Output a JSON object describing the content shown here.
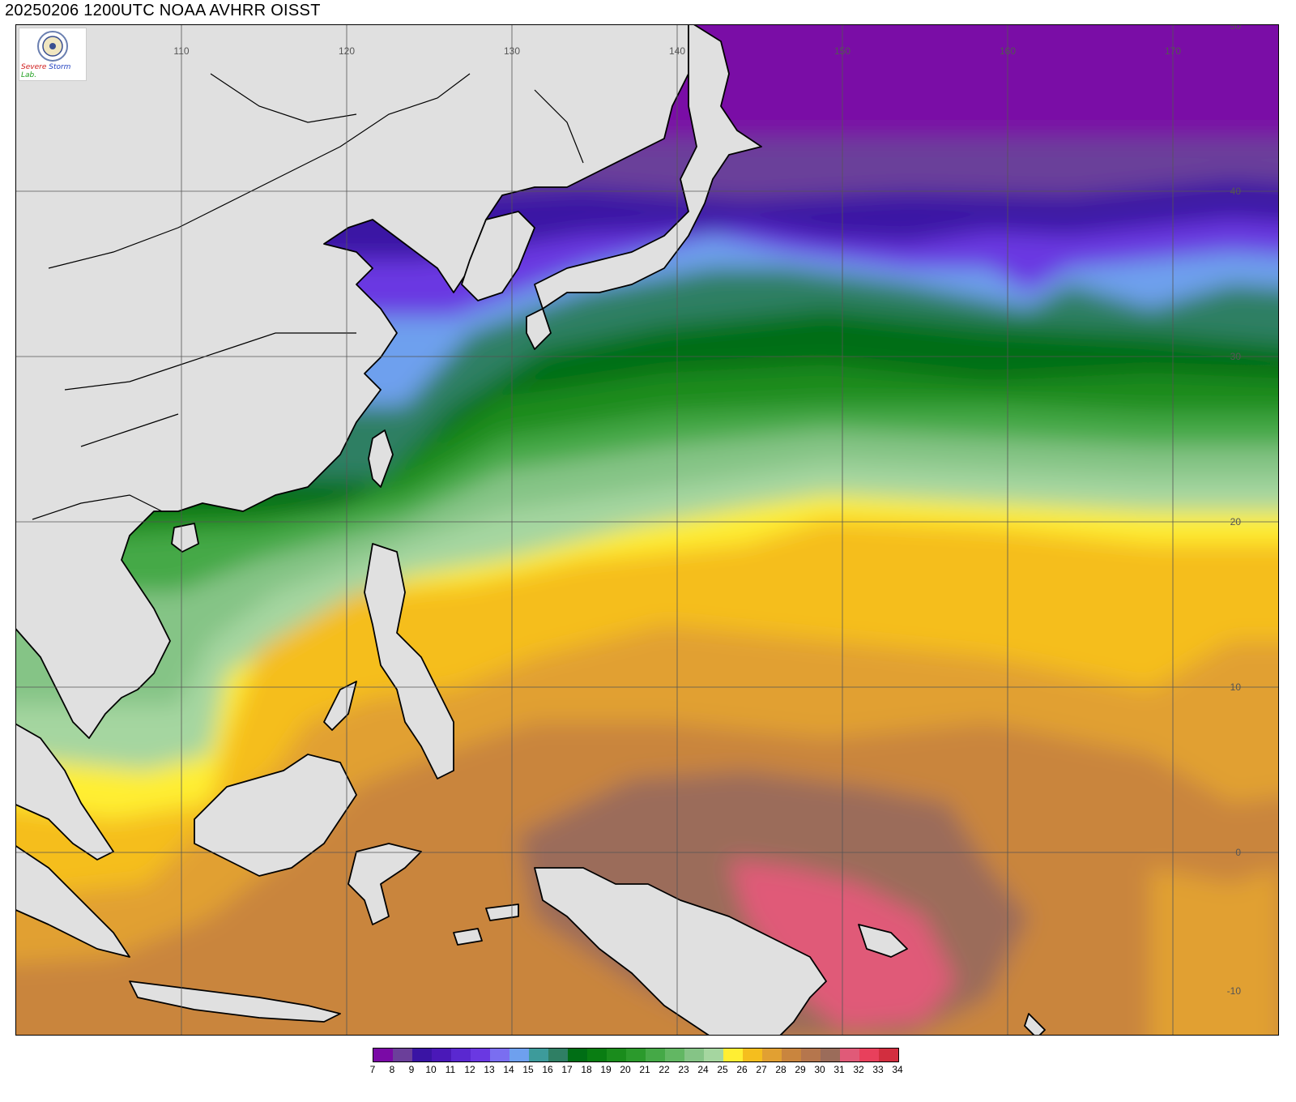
{
  "title": "20250206 1200UTC NOAA AVHRR OISST",
  "logo": {
    "text_line1": "Severe",
    "text_line2": "Storm",
    "text_line3": "Lab."
  },
  "map": {
    "lon_range": [
      100,
      175
    ],
    "lat_range": [
      -10,
      50
    ],
    "lon_ticks": [
      "110",
      "120",
      "130",
      "140",
      "150",
      "160",
      "170"
    ],
    "lat_ticks": [
      "50",
      "40",
      "30",
      "20",
      "10",
      "0",
      "-10"
    ],
    "land_color": "#e0e0e0",
    "coast_color": "#000000"
  },
  "legend": {
    "colors": [
      "#7a0aa6",
      "#6b3f9a",
      "#3a14a4",
      "#4a18b8",
      "#5a28d0",
      "#6a38e2",
      "#7a6ef0",
      "#6ea0ee",
      "#3d9b9b",
      "#2f7f64",
      "#006e15",
      "#097d12",
      "#1a8c1c",
      "#2b9a2c",
      "#45a947",
      "#62b763",
      "#85c486",
      "#a5d6a0",
      "#ffee33",
      "#f5be1e",
      "#e1a032",
      "#c9853e",
      "#b5764d",
      "#9b6c5a",
      "#e05a78",
      "#e8405c",
      "#d22e3f"
    ],
    "labels": [
      "7",
      "8",
      "9",
      "10",
      "11",
      "12",
      "13",
      "14",
      "15",
      "16",
      "17",
      "18",
      "19",
      "20",
      "21",
      "22",
      "23",
      "24",
      "25",
      "26",
      "27",
      "28",
      "29",
      "30",
      "31",
      "32",
      "33",
      "34"
    ]
  }
}
